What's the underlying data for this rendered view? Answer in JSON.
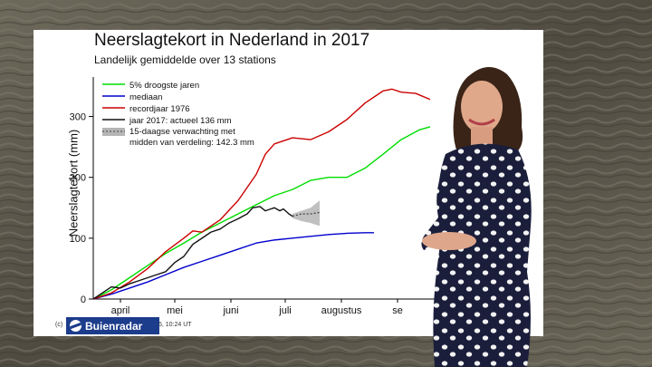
{
  "chart_data": {
    "type": "line",
    "title": "Neerslagtekort in Nederland in 2017",
    "subtitle": "Landelijk gemiddelde over 13 stations",
    "ylabel": "Neerslagtekort (mm)",
    "xlabel": "",
    "ylim": [
      0,
      350
    ],
    "xlim": [
      0,
      195
    ],
    "yticks": [
      0,
      100,
      200,
      300
    ],
    "xtick_labels": [
      {
        "label": "april",
        "x": 15
      },
      {
        "label": "mei",
        "x": 45
      },
      {
        "label": "juni",
        "x": 76
      },
      {
        "label": "juli",
        "x": 106
      },
      {
        "label": "augustus",
        "x": 137
      },
      {
        "label": "se",
        "x": 168
      }
    ],
    "series": [
      {
        "name": "5% droogste jaren",
        "color": "#00dd00",
        "x": [
          0,
          10,
          20,
          30,
          40,
          50,
          60,
          70,
          80,
          90,
          100,
          110,
          120,
          130,
          140,
          150,
          160,
          170,
          180,
          186
        ],
        "y": [
          0,
          15,
          35,
          55,
          75,
          92,
          110,
          125,
          140,
          155,
          170,
          180,
          195,
          200,
          200,
          215,
          238,
          262,
          278,
          283
        ]
      },
      {
        "name": "mediaan",
        "color": "#0000cc",
        "x": [
          0,
          10,
          20,
          30,
          40,
          50,
          60,
          70,
          80,
          90,
          100,
          110,
          120,
          130,
          140,
          150,
          155
        ],
        "y": [
          0,
          8,
          18,
          28,
          40,
          52,
          62,
          72,
          82,
          92,
          97,
          100,
          103,
          106,
          108,
          109,
          109
        ]
      },
      {
        "name": "recordjaar 1976",
        "color": "#cc0000",
        "x": [
          0,
          10,
          20,
          30,
          40,
          50,
          55,
          60,
          70,
          80,
          90,
          95,
          100,
          110,
          120,
          130,
          140,
          150,
          160,
          165,
          170,
          178,
          186
        ],
        "y": [
          0,
          10,
          28,
          50,
          78,
          100,
          112,
          110,
          130,
          162,
          205,
          238,
          255,
          265,
          262,
          275,
          295,
          322,
          342,
          345,
          340,
          338,
          328
        ]
      },
      {
        "name": "jaar 2017: actueel 136 mm",
        "color": "#111111",
        "x": [
          0,
          5,
          10,
          15,
          20,
          25,
          30,
          35,
          40,
          45,
          50,
          55,
          60,
          65,
          70,
          75,
          80,
          85,
          88,
          92,
          95,
          98,
          100,
          103,
          105,
          108,
          110
        ],
        "y": [
          0,
          10,
          20,
          18,
          25,
          30,
          35,
          40,
          45,
          60,
          70,
          90,
          100,
          110,
          115,
          125,
          132,
          140,
          150,
          152,
          145,
          148,
          150,
          145,
          148,
          140,
          136
        ]
      }
    ],
    "forecast_band": {
      "name": "15-daagse verwachting met midden van verdeling: 142.3 mm",
      "x": [
        110,
        115,
        120,
        125
      ],
      "low": [
        133,
        128,
        125,
        120
      ],
      "mid": [
        136,
        140,
        140,
        142.3
      ],
      "high": [
        140,
        145,
        150,
        162
      ]
    },
    "legend_position": "top-left",
    "grid": false
  },
  "footer": {
    "copyright": "(c)",
    "brand": "Buienradar",
    "timestamp": "5, 10:24 UT"
  }
}
